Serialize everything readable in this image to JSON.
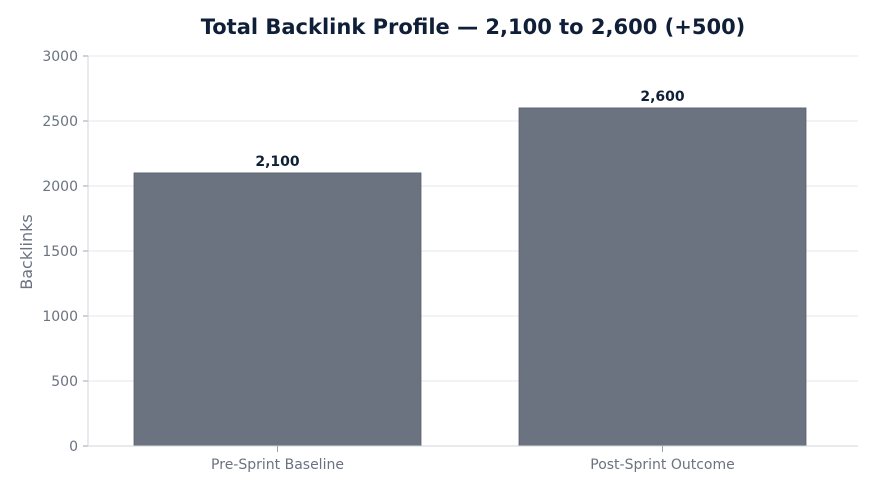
{
  "chart_data": {
    "type": "bar",
    "title": "Total Backlink Profile — 2,100 to 2,600 (+500)",
    "xlabel": "",
    "ylabel": "Backlinks",
    "categories": [
      "Pre-Sprint Baseline",
      "Post-Sprint Outcome"
    ],
    "values": [
      2100,
      2600
    ],
    "data_labels": [
      "2,100",
      "2,600"
    ],
    "ylim": [
      0,
      3000
    ],
    "yticks": [
      0,
      500,
      1000,
      1500,
      2000,
      2500,
      3000
    ],
    "grid": true,
    "legend": "none",
    "colors": {
      "bar": "#6b7280",
      "bar_edge": "#5f6673",
      "title": "#0f1f38",
      "text": "#6b7280",
      "grid": "#e5e7eb"
    }
  }
}
